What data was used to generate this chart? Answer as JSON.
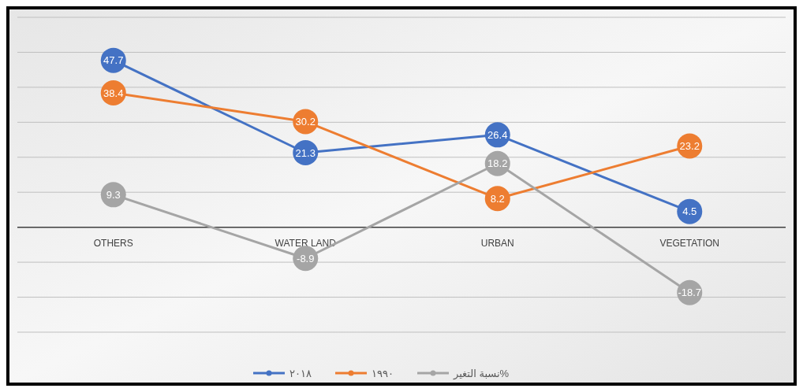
{
  "chart_data": {
    "type": "line",
    "categories": [
      "OTHERS",
      "WATER LAND",
      "URBAN",
      "VEGETATION"
    ],
    "series": [
      {
        "name": "٢٠١٨",
        "color": "#4472c4",
        "values": [
          47.7,
          21.3,
          26.4,
          4.5
        ]
      },
      {
        "name": "١٩٩٠",
        "color": "#ed7d31",
        "values": [
          38.4,
          30.2,
          8.2,
          23.2
        ]
      },
      {
        "name": "نسبة التغير%",
        "color": "#a5a5a5",
        "values": [
          9.3,
          -8.9,
          18.2,
          -18.7
        ]
      }
    ],
    "ylim": [
      -30,
      60
    ],
    "yticks": [
      {
        "value": -30,
        "label": null
      },
      {
        "value": -20,
        "label": null
      },
      {
        "value": -10,
        "label": null
      },
      {
        "value": 0,
        "label": null
      },
      {
        "value": 10,
        "label": null
      },
      {
        "value": 20,
        "label": null
      },
      {
        "value": 30,
        "label": null
      },
      {
        "value": 40,
        "label": null
      },
      {
        "value": 50,
        "label": null
      },
      {
        "value": 60,
        "label": null
      }
    ],
    "tick_labels": "x",
    "grid": "y",
    "legend": "bottom",
    "marker": "circle",
    "line_style": "solid",
    "data_labels": true
  }
}
